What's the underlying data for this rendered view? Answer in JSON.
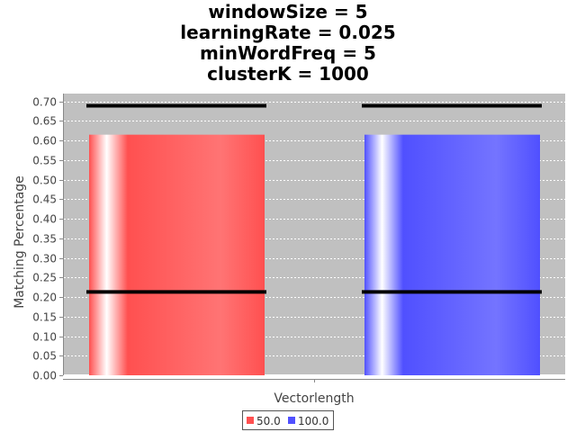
{
  "chart_data": {
    "type": "bar",
    "title": [
      "windowSize = 5",
      "learningRate = 0.025",
      "minWordFreq = 5",
      "clusterK = 1000"
    ],
    "xlabel": "Vectorlength",
    "ylabel": "Matching Percentage",
    "ylim": [
      0,
      0.72
    ],
    "yticks": [
      "0.00",
      "0.05",
      "0.10",
      "0.15",
      "0.20",
      "0.25",
      "0.30",
      "0.35",
      "0.40",
      "0.45",
      "0.50",
      "0.55",
      "0.60",
      "0.65",
      "0.70"
    ],
    "grid": true,
    "legend_position": "bottom",
    "series": [
      {
        "name": "50.0",
        "value": 0.615,
        "low": 0.213,
        "high": 0.689,
        "color": "#ff5050"
      },
      {
        "name": "100.0",
        "value": 0.615,
        "low": 0.213,
        "high": 0.689,
        "color": "#5050ff"
      }
    ]
  },
  "colors": {
    "plot_background": "#c0c0c0",
    "gridline": "#ffffff",
    "interval_line": "#000000"
  }
}
